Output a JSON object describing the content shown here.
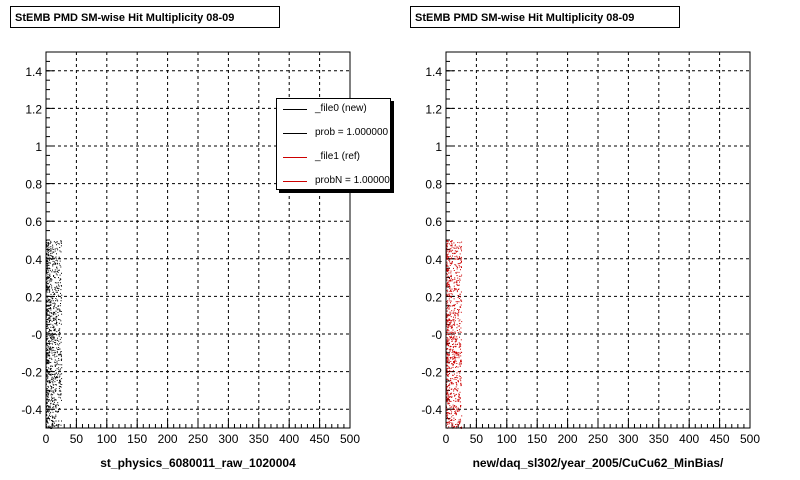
{
  "chart_data": [
    {
      "type": "scatter",
      "title": "StEMB PMD SM-wise Hit Multiplicity 08-09",
      "xlabel": "st_physics_6080011_raw_1020004",
      "ylabel": "",
      "xlim": [
        0,
        500
      ],
      "ylim": [
        -0.5,
        1.5
      ],
      "xticks": [
        0,
        50,
        100,
        150,
        200,
        250,
        300,
        350,
        400,
        450,
        500
      ],
      "yticks": [
        -0.4,
        -0.2,
        0,
        0.2,
        0.4,
        0.6,
        0.8,
        1,
        1.2,
        1.4
      ],
      "ytick_labels": [
        "-0.4",
        "-0.2",
        "-0",
        "0.2",
        "0.4",
        "0.6",
        "0.8",
        "1",
        "1.2",
        "1.4"
      ],
      "grid": true,
      "legend_position": "top-right",
      "legend": [
        {
          "label": "_file0 (new)",
          "color": "#000000"
        },
        {
          "label": "prob = 1.000000",
          "color": "#000000"
        },
        {
          "label": "_file1 (ref)",
          "color": "#cc0000"
        },
        {
          "label": "probN = 1.000000",
          "color": "#cc0000"
        }
      ],
      "series": [
        {
          "color": "#000000",
          "x_range": [
            0,
            25
          ],
          "y_range": [
            -0.5,
            0.5
          ],
          "approx_points": 900
        }
      ]
    },
    {
      "type": "scatter",
      "title": "StEMB PMD SM-wise Hit Multiplicity 08-09",
      "xlabel": "new/daq_sl302/year_2005/CuCu62_MinBias/",
      "ylabel": "",
      "xlim": [
        0,
        500
      ],
      "ylim": [
        -0.5,
        1.5
      ],
      "xticks": [
        0,
        50,
        100,
        150,
        200,
        250,
        300,
        350,
        400,
        450,
        500
      ],
      "yticks": [
        -0.4,
        -0.2,
        0,
        0.2,
        0.4,
        0.6,
        0.8,
        1,
        1.2,
        1.4
      ],
      "ytick_labels": [
        "-0.4",
        "-0.2",
        "-0",
        "0.2",
        "0.4",
        "0.6",
        "0.8",
        "1",
        "1.2",
        "1.4"
      ],
      "grid": true,
      "series": [
        {
          "color": "#cc0000",
          "x_range": [
            0,
            25
          ],
          "y_range": [
            -0.5,
            0.5
          ],
          "approx_points": 900
        }
      ]
    }
  ]
}
